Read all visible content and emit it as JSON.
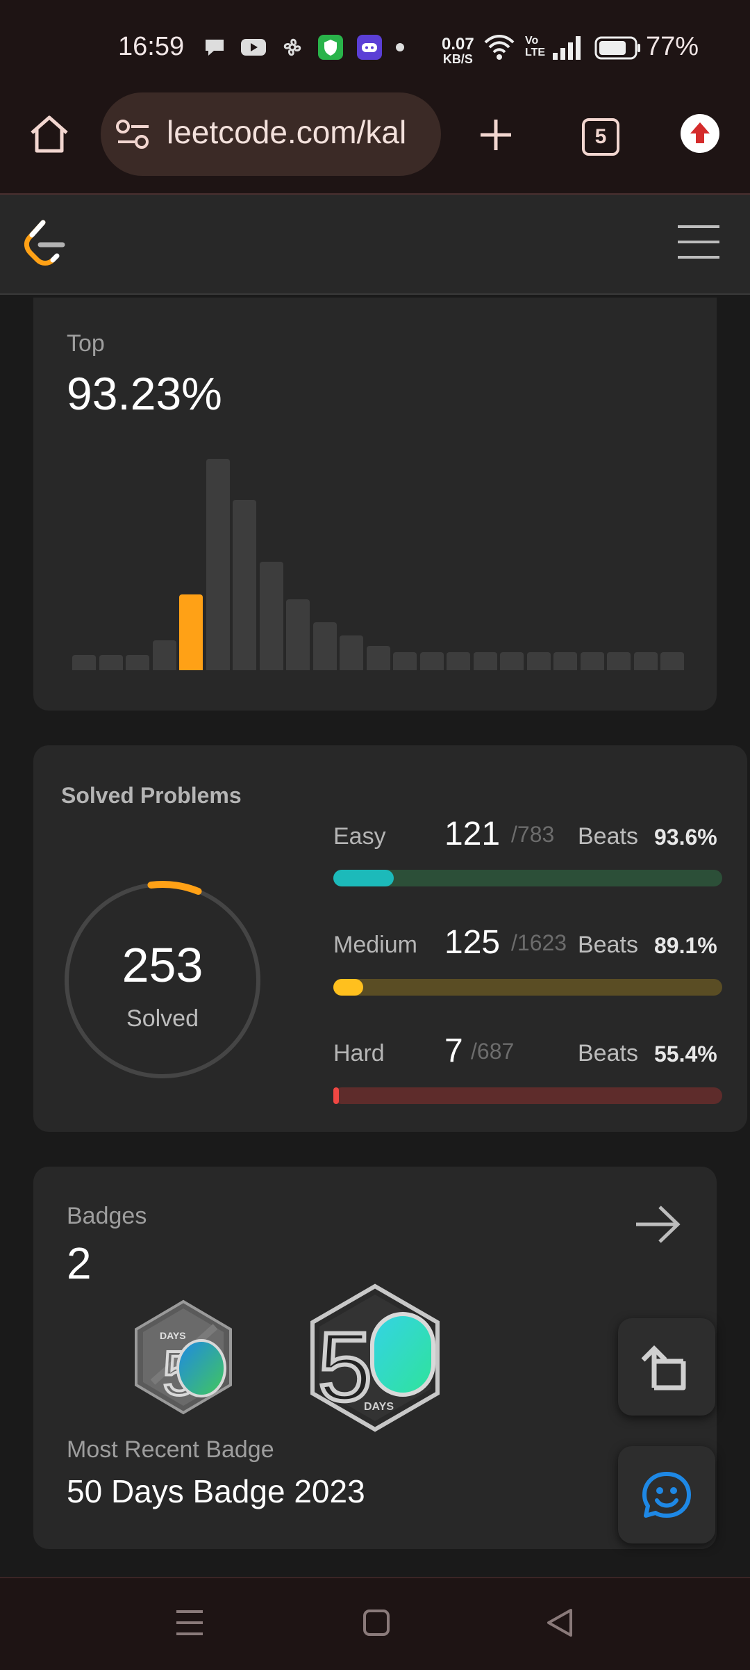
{
  "status_bar": {
    "time": "16:59",
    "net_speed_value": "0.07",
    "net_speed_unit": "KB/S",
    "volte": "Vo LTE",
    "battery": "77%"
  },
  "browser": {
    "url": "leetcode.com/kal",
    "tab_count": "5"
  },
  "ranking_card": {
    "label": "Top",
    "value": "93.23%",
    "chart_data": {
      "type": "bar",
      "values": [
        1,
        1,
        1,
        2,
        5,
        14,
        11.3,
        7.2,
        4.7,
        3.2,
        2.3,
        1.6,
        1.2,
        1.2,
        1.2,
        1.2,
        1.2,
        1.2,
        1.2,
        1.2,
        1.2,
        1.2,
        1.2
      ],
      "highlight_index": 4,
      "highlight_color": "#ffa116",
      "bar_color": "#3d3d3d"
    }
  },
  "solved": {
    "title": "Solved Problems",
    "total": "253",
    "total_label": "Solved",
    "ring_fraction": 0.08,
    "items": [
      {
        "label": "Easy",
        "count": "121",
        "total": "/783",
        "beats_label": "Beats",
        "beats": "93.6%",
        "fraction": 0.155,
        "color": "#1cbaba",
        "track": "#2c4f38",
        "label_color": "#b5b5b5"
      },
      {
        "label": "Medium",
        "count": "125",
        "total": "/1623",
        "beats_label": "Beats",
        "beats": "89.1%",
        "fraction": 0.077,
        "color": "#ffc01e",
        "track": "#5a4d24",
        "label_color": "#b5b5b5"
      },
      {
        "label": "Hard",
        "count": "7",
        "total": "/687",
        "beats_label": "Beats",
        "beats": "55.4%",
        "fraction": 0.01,
        "color": "#ef4743",
        "track": "#5e2c2b",
        "label_color": "#b5b5b5"
      }
    ]
  },
  "badges": {
    "title": "Badges",
    "count": "2",
    "badge1_text": "DAYS",
    "badge2_text": "DAYS",
    "recent_label": "Most Recent Badge",
    "recent_name": "50 Days Badge 2023"
  },
  "colors": {
    "accent": "#ffa116",
    "blue_icon": "#1e88e5"
  }
}
